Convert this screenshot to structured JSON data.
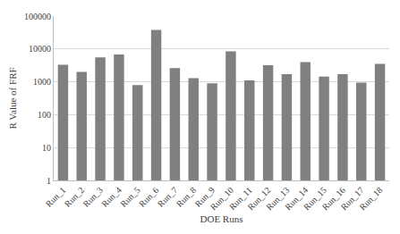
{
  "chart_data": {
    "type": "bar",
    "x_label": "DOE Runs",
    "y_label": "R Value of FRF",
    "categories": [
      "Run_1",
      "Run_2",
      "Run_3",
      "Run_4",
      "Run_5",
      "Run_6",
      "Run_7",
      "Run_8",
      "Run_9",
      "Run_10",
      "Run_11",
      "Run_12",
      "Run_13",
      "Run_14",
      "Run_15",
      "Run_16",
      "Run_17",
      "Run_18"
    ],
    "values": [
      3300,
      2000,
      5500,
      6800,
      800,
      38000,
      2600,
      1300,
      900,
      8500,
      1100,
      3200,
      1700,
      4000,
      1450,
      1700,
      950,
      3500
    ],
    "color": "#808080",
    "log": "y",
    "ylim": [
      1,
      100000
    ],
    "yticks": [
      1,
      10,
      100,
      1000,
      10000,
      100000
    ],
    "grid": true
  }
}
